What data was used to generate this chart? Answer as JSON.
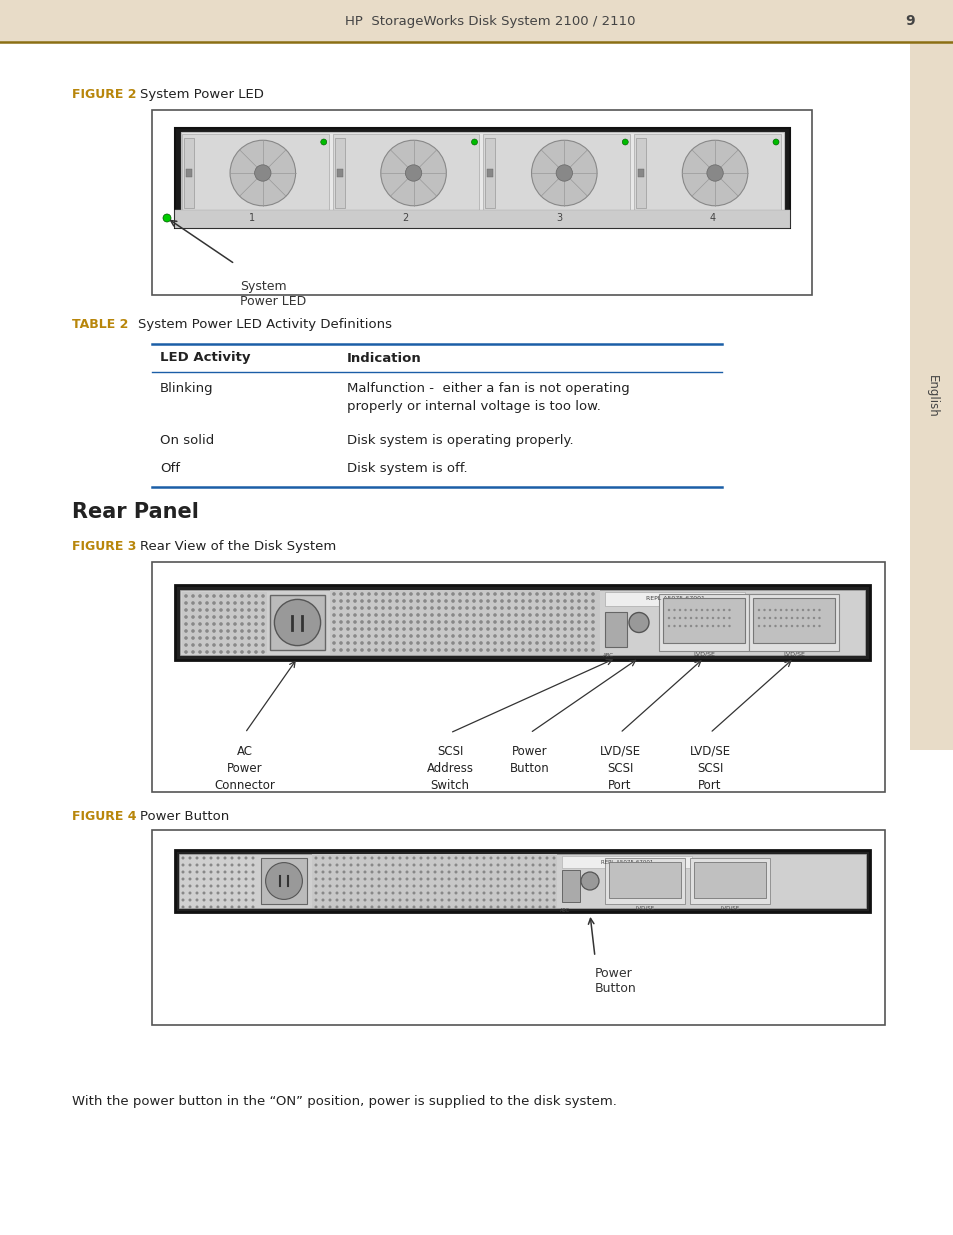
{
  "page_title": "HP  StorageWorks Disk System 2100 / 2110",
  "page_number": "9",
  "header_bg": "#e8dcc8",
  "header_line_color": "#8B6F14",
  "sidebar_bg": "#e8dcc8",
  "sidebar_text": "English",
  "figure2_label": "FIGURE 2",
  "figure2_title": "System Power LED",
  "figure2_caption": "System\nPower LED",
  "table2_label": "TABLE 2",
  "table2_title": "System Power LED Activity Definitions",
  "table_col1_header": "LED Activity",
  "table_col2_header": "Indication",
  "table_rows": [
    [
      "Blinking",
      "Malfunction -  either a fan is not operating\nproperly or internal voltage is too low."
    ],
    [
      "On solid",
      "Disk system is operating properly."
    ],
    [
      "Off",
      "Disk system is off."
    ]
  ],
  "section_title": "Rear Panel",
  "figure3_label": "FIGURE 3",
  "figure3_title": "Rear View of the Disk System",
  "figure3_labels": [
    "AC\nPower\nConnector",
    "SCSI\nAddress\nSwitch",
    "Power\nButton",
    "LVD/SE\nSCSI\nPort",
    "LVD/SE\nSCSI\nPort"
  ],
  "figure4_label": "FIGURE 4",
  "figure4_title": "Power Button",
  "figure4_caption": "Power\nButton",
  "footer_text": "With the power button in the “ON” position, power is supplied to the disk system.",
  "gold_color": "#B8860B",
  "table_line_color": "#1B5EA7",
  "body_text_color": "#222222",
  "bg_color": "#ffffff"
}
